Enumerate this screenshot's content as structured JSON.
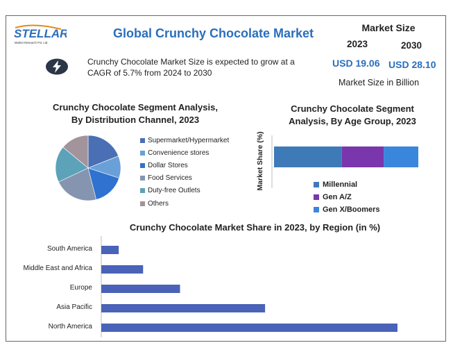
{
  "header": {
    "logo_text": "STELLAR",
    "logo_subtext": "Market Research Pvt. Ltd.",
    "title": "Global Crunchy Chocolate Market",
    "market_size_title": "Market Size",
    "year_start": "2023",
    "year_end": "2030",
    "value_start": "USD 19.06",
    "value_end": "USD 28.10",
    "unit_note": "Market Size in Billion",
    "cagr_text": "Crunchy Chocolate Market Size is expected to grow at a CAGR of 5.7% from 2024 to 2030"
  },
  "colors": {
    "title_blue": "#2a6ebd",
    "pie": [
      "#4a6fb4",
      "#6aa0d8",
      "#2f72cf",
      "#8595b0",
      "#5ca2b8",
      "#a3949c"
    ],
    "age": [
      "#3f7ab8",
      "#7a36ad",
      "#3a86dc"
    ],
    "region_bar": "#4a62b8"
  },
  "chart_data": [
    {
      "type": "pie",
      "title_lines": [
        "Crunchy Chocolate Segment Analysis,",
        "By Distribution Channel, 2023"
      ],
      "labels": [
        "Supermarket/Hypermarket",
        "Convenience stores",
        "Dollar Stores",
        "Food Services",
        "Duty-free Outlets",
        "Others"
      ],
      "values": [
        19,
        11,
        16,
        22,
        18,
        14
      ]
    },
    {
      "type": "bar",
      "orientation": "horizontal-stacked",
      "title_lines": [
        "Crunchy Chocolate Segment",
        "Analysis, By Age Group, 2023"
      ],
      "ylabel": "Market Share (%)",
      "series": [
        {
          "name": "Millennial",
          "values": [
            47
          ]
        },
        {
          "name": "Gen A/Z",
          "values": [
            29
          ]
        },
        {
          "name": "Gen X/Boomers",
          "values": [
            24
          ]
        }
      ],
      "legend_position": "bottom"
    },
    {
      "type": "bar",
      "orientation": "horizontal",
      "title": "Crunchy Chocolate Market Share in 2023, by Region (in %)",
      "categories": [
        "South America",
        "Middle East and Africa",
        "Europe",
        "Asia Pacific",
        "North America"
      ],
      "values": [
        2.5,
        6,
        11.3,
        23.5,
        42.5
      ],
      "xlim": [
        0,
        43
      ]
    }
  ]
}
